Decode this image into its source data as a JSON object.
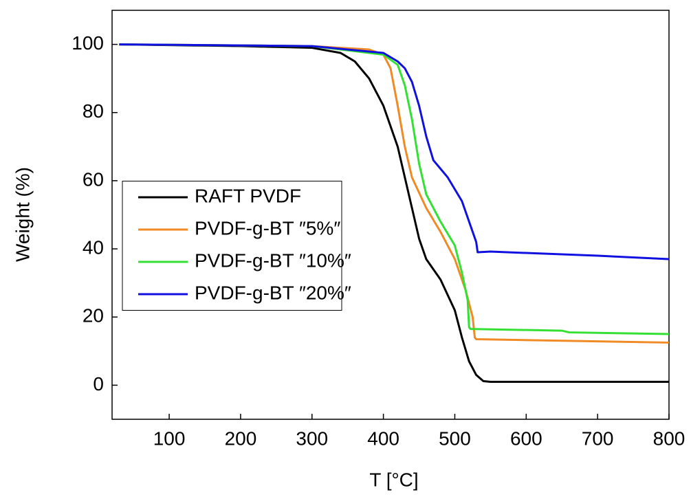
{
  "chart_data": {
    "type": "line",
    "xlabel": "T [°C]",
    "ylabel": "Weight (%)",
    "xlim": [
      20,
      800
    ],
    "ylim": [
      -10,
      110
    ],
    "xticks": [
      100,
      200,
      300,
      400,
      500,
      600,
      700,
      800
    ],
    "yticks": [
      0,
      20,
      40,
      60,
      80,
      100
    ],
    "legend_loc": "center left",
    "series": [
      {
        "name": "RAFT PVDF",
        "color": "#000000",
        "x": [
          30,
          200,
          300,
          340,
          360,
          380,
          400,
          420,
          440,
          450,
          460,
          480,
          500,
          510,
          520,
          530,
          540,
          550,
          800
        ],
        "values": [
          100,
          99.5,
          99,
          97.5,
          95,
          90,
          82,
          70,
          52,
          43,
          37,
          31,
          22,
          14,
          7,
          3,
          1.2,
          1,
          1
        ]
      },
      {
        "name": "PVDF-g-BT ″5%″",
        "color": "#f08a24",
        "x": [
          30,
          300,
          380,
          400,
          410,
          420,
          430,
          440,
          460,
          480,
          500,
          515,
          525,
          528,
          530,
          800
        ],
        "values": [
          100,
          99.5,
          98.5,
          97,
          93,
          82,
          70,
          61,
          52,
          45,
          37,
          28,
          20,
          14,
          13.5,
          12.5
        ]
      },
      {
        "name": "PVDF-g-BT ″10%″",
        "color": "#33e033",
        "x": [
          30,
          300,
          400,
          420,
          430,
          440,
          450,
          460,
          480,
          500,
          510,
          518,
          520,
          522,
          650,
          660,
          800
        ],
        "values": [
          100,
          99.5,
          97,
          94,
          88,
          78,
          65,
          56,
          48,
          41,
          33,
          25,
          17,
          16.5,
          16,
          15.5,
          15
        ]
      },
      {
        "name": "PVDF-g-BT ″20%″",
        "color": "#1010e0",
        "x": [
          30,
          300,
          400,
          420,
          430,
          440,
          450,
          460,
          470,
          490,
          510,
          525,
          530,
          532,
          550,
          700,
          800
        ],
        "values": [
          100,
          99.5,
          97.5,
          95,
          93,
          89,
          82,
          73,
          66,
          61,
          54,
          45,
          42,
          39,
          39.2,
          38,
          37
        ]
      }
    ]
  }
}
